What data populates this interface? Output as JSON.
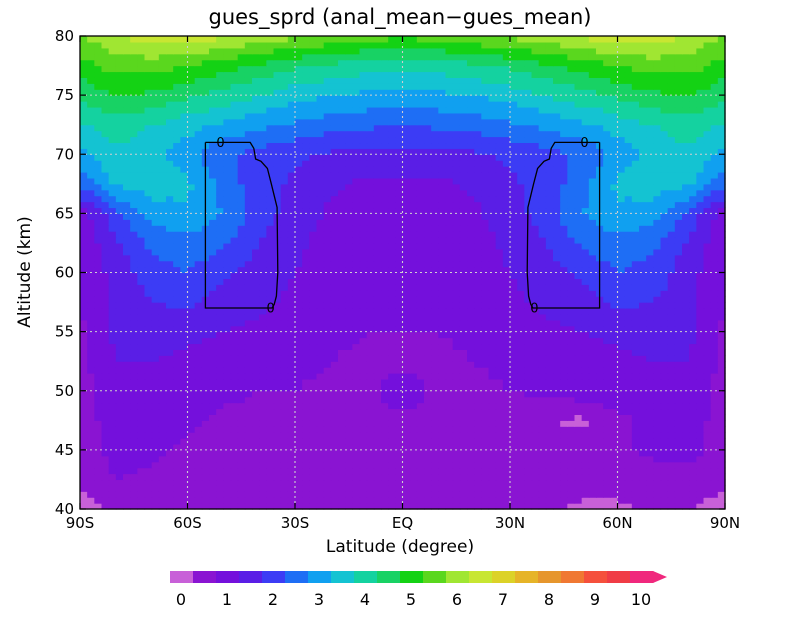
{
  "chart_data": {
    "type": "heatmap",
    "title": "gues_sprd (anal_mean−gues_mean)",
    "xlabel": "Latitude (degree)",
    "ylabel": "Altitude (km)",
    "xlim": [
      -90,
      90
    ],
    "ylim": [
      40,
      80
    ],
    "x_ticks": [
      {
        "value": -90,
        "label": "90S"
      },
      {
        "value": -60,
        "label": "60S"
      },
      {
        "value": -30,
        "label": "30S"
      },
      {
        "value": 0,
        "label": "EQ"
      },
      {
        "value": 30,
        "label": "30N"
      },
      {
        "value": 60,
        "label": "60N"
      },
      {
        "value": 90,
        "label": "90N"
      }
    ],
    "y_ticks": [
      {
        "value": 40,
        "label": "40"
      },
      {
        "value": 45,
        "label": "45"
      },
      {
        "value": 50,
        "label": "50"
      },
      {
        "value": 55,
        "label": "55"
      },
      {
        "value": 60,
        "label": "60"
      },
      {
        "value": 65,
        "label": "65"
      },
      {
        "value": 70,
        "label": "70"
      },
      {
        "value": 75,
        "label": "75"
      },
      {
        "value": 80,
        "label": "80"
      }
    ],
    "grid": true,
    "grid_style": "dotted",
    "colorbar": {
      "position": "bottom",
      "extend": "max",
      "levels": [
        0,
        0.5,
        1,
        1.5,
        2,
        2.5,
        3,
        3.5,
        4,
        4.5,
        5,
        5.5,
        6,
        6.5,
        7,
        7.5,
        8,
        8.5,
        9,
        9.5,
        10
      ],
      "colors": [
        "#c860d8",
        "#8a14d2",
        "#7410dc",
        "#5a1ee6",
        "#3c3cf5",
        "#1e6ef5",
        "#10a0f0",
        "#14c3d2",
        "#14d2a0",
        "#18d264",
        "#14d214",
        "#5ad71e",
        "#a0e632",
        "#c8e632",
        "#dcd228",
        "#e6b428",
        "#e6962d",
        "#f07832",
        "#f5503c",
        "#f03c46",
        "#f0287d"
      ],
      "tick_values": [
        0,
        1,
        2,
        3,
        4,
        5,
        6,
        7,
        8,
        9,
        10
      ],
      "tick_labels": [
        "0",
        "1",
        "2",
        "3",
        "4",
        "5",
        "6",
        "7",
        "8",
        "9",
        "10"
      ]
    },
    "contour_lines": [
      {
        "level": 0,
        "label": "0",
        "region": "southern hemisphere",
        "lat_range": [
          -55,
          -35
        ],
        "alt_range": [
          57,
          71
        ]
      },
      {
        "level": 0,
        "label": "0",
        "region": "northern hemisphere",
        "lat_range": [
          35,
          55
        ],
        "alt_range": [
          57,
          71
        ]
      }
    ],
    "value_grid": {
      "lat": [
        -90,
        -80,
        -70,
        -60,
        -50,
        -40,
        -30,
        -20,
        -10,
        0,
        10,
        20,
        30,
        40,
        50,
        60,
        70,
        80,
        90
      ],
      "alt": [
        40,
        42.5,
        45,
        47.5,
        50,
        52.5,
        55,
        57.5,
        60,
        62.5,
        65,
        67.5,
        70,
        72.5,
        75,
        77.5,
        80
      ],
      "values": [
        [
          0.3,
          0.6,
          0.7,
          0.7,
          0.8,
          0.8,
          0.8,
          0.7,
          0.6,
          0.6,
          0.6,
          0.7,
          0.8,
          0.6,
          0.4,
          0.4,
          0.6,
          0.5,
          0.3
        ],
        [
          0.6,
          1.0,
          0.9,
          0.8,
          0.8,
          0.8,
          0.8,
          0.8,
          0.7,
          0.7,
          0.7,
          0.8,
          0.8,
          0.7,
          0.7,
          0.7,
          0.8,
          0.8,
          0.6
        ],
        [
          0.7,
          1.2,
          1.1,
          0.9,
          0.9,
          0.9,
          0.9,
          0.9,
          0.9,
          0.9,
          0.9,
          0.9,
          0.9,
          0.9,
          0.9,
          0.9,
          1.1,
          1.2,
          0.7
        ],
        [
          0.7,
          1.3,
          1.2,
          1.1,
          0.9,
          0.9,
          0.9,
          0.9,
          0.9,
          0.9,
          0.9,
          0.9,
          0.8,
          0.5,
          0.4,
          0.8,
          1.2,
          1.3,
          0.7
        ],
        [
          0.8,
          1.4,
          1.4,
          1.3,
          1.1,
          1.0,
          1.0,
          0.9,
          0.9,
          1.2,
          0.9,
          0.9,
          1.0,
          1.1,
          1.3,
          1.4,
          1.4,
          1.4,
          0.8
        ],
        [
          0.8,
          1.5,
          1.5,
          1.4,
          1.3,
          1.2,
          1.1,
          1.0,
          0.9,
          0.9,
          0.9,
          1.0,
          1.1,
          1.2,
          1.3,
          1.4,
          1.5,
          1.5,
          0.8
        ],
        [
          0.9,
          1.6,
          1.7,
          1.6,
          1.5,
          1.4,
          1.2,
          1.1,
          1.0,
          1.0,
          1.0,
          1.1,
          1.2,
          1.4,
          1.5,
          1.6,
          1.7,
          1.6,
          0.9
        ],
        [
          1.0,
          1.6,
          2.0,
          2.1,
          1.8,
          1.6,
          1.4,
          1.2,
          1.1,
          1.0,
          1.1,
          1.2,
          1.4,
          1.6,
          1.8,
          2.1,
          2.0,
          1.6,
          1.0
        ],
        [
          1.0,
          1.7,
          2.3,
          2.5,
          2.1,
          1.8,
          1.5,
          1.3,
          1.1,
          1.0,
          1.1,
          1.3,
          1.5,
          1.8,
          2.1,
          2.5,
          2.3,
          1.7,
          1.0
        ],
        [
          1.1,
          1.9,
          2.6,
          2.8,
          2.6,
          2.0,
          1.6,
          1.3,
          1.1,
          1.0,
          1.1,
          1.3,
          1.6,
          2.0,
          2.6,
          2.8,
          2.6,
          1.9,
          1.1
        ],
        [
          1.2,
          2.3,
          3.2,
          3.4,
          3.0,
          2.2,
          1.8,
          1.4,
          1.2,
          1.1,
          1.2,
          1.4,
          1.8,
          2.2,
          3.0,
          3.4,
          3.2,
          2.3,
          1.2
        ],
        [
          2.6,
          3.6,
          3.8,
          3.6,
          2.8,
          2.2,
          1.9,
          1.6,
          1.4,
          1.4,
          1.4,
          1.6,
          1.9,
          2.2,
          2.8,
          3.6,
          3.8,
          3.6,
          2.6
        ],
        [
          3.3,
          3.9,
          3.7,
          3.2,
          2.6,
          2.3,
          2.1,
          1.9,
          1.8,
          1.8,
          1.8,
          1.9,
          2.1,
          2.3,
          2.6,
          3.2,
          3.7,
          3.9,
          3.3
        ],
        [
          3.9,
          4.3,
          4.0,
          3.7,
          3.4,
          3.1,
          2.9,
          2.7,
          2.6,
          2.5,
          2.6,
          2.7,
          2.9,
          3.1,
          3.4,
          3.7,
          4.0,
          4.3,
          3.9
        ],
        [
          4.6,
          5.0,
          4.9,
          4.6,
          4.3,
          4.0,
          3.7,
          3.5,
          3.4,
          3.3,
          3.4,
          3.5,
          3.7,
          4.0,
          4.3,
          4.6,
          4.9,
          5.0,
          4.6
        ],
        [
          5.3,
          5.7,
          5.7,
          5.5,
          5.2,
          4.9,
          4.6,
          4.4,
          4.2,
          4.1,
          4.2,
          4.4,
          4.6,
          4.9,
          5.2,
          5.5,
          5.7,
          5.7,
          5.3
        ],
        [
          6.0,
          6.4,
          6.8,
          6.9,
          6.6,
          6.3,
          6.1,
          5.9,
          5.7,
          5.6,
          5.7,
          5.9,
          6.1,
          6.3,
          6.6,
          6.9,
          6.8,
          6.4,
          6.0
        ]
      ]
    }
  }
}
